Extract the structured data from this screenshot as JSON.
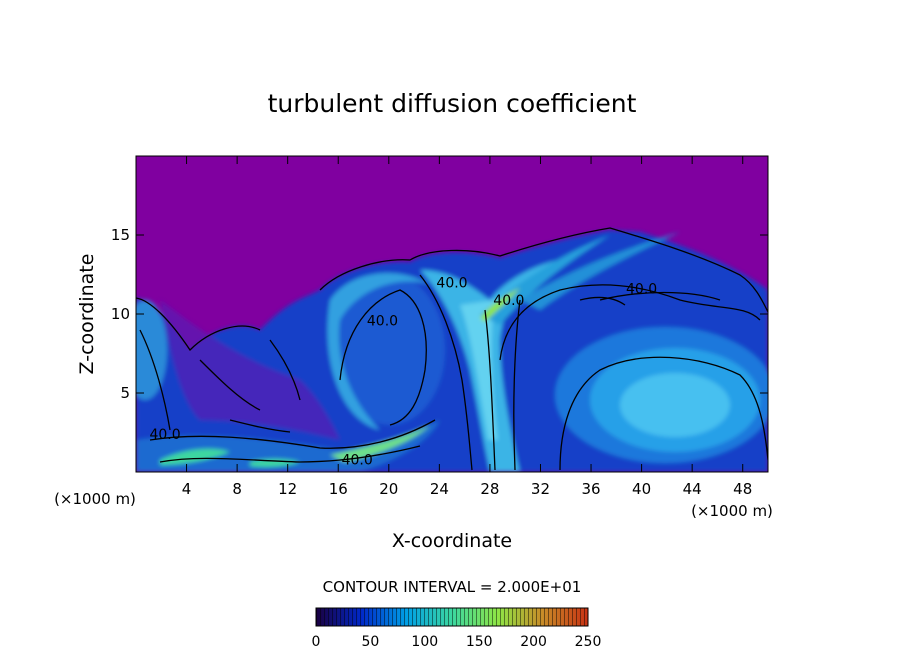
{
  "chart_data": {
    "type": "heatmap",
    "title": "turbulent diffusion coefficient",
    "xlabel": "X-coordinate",
    "ylabel": "Z-coordinate",
    "x_unit_left": "(×1000 m)",
    "x_unit_right": "(×1000 m)",
    "xlim": [
      0,
      50
    ],
    "ylim": [
      0,
      20
    ],
    "xticks": [
      4,
      8,
      12,
      16,
      20,
      24,
      28,
      32,
      36,
      40,
      44,
      48
    ],
    "yticks": [
      5,
      10,
      15
    ],
    "contour_interval_text": "CONTOUR INTERVAL = 2.000E+01",
    "contour_labels": [
      {
        "text": "40.0",
        "x": 40.0,
        "y": 11.6
      },
      {
        "text": "40.0",
        "x": 29.5,
        "y": 10.9
      },
      {
        "text": "40.0",
        "x": 19.5,
        "y": 9.6
      },
      {
        "text": "40.0",
        "x": 25.0,
        "y": 12.0
      },
      {
        "text": "40.0",
        "x": 2.3,
        "y": 2.4
      },
      {
        "text": "40.0",
        "x": 17.5,
        "y": 0.8
      }
    ],
    "colorbar": {
      "min": 0,
      "max": 250,
      "ticks": [
        0,
        50,
        100,
        150,
        200,
        250
      ],
      "colors": [
        "#1a0040",
        "#0028c8",
        "#00a0e6",
        "#3cd7a0",
        "#8ee646",
        "#c88c28",
        "#c83214"
      ]
    },
    "background_color": "#8000a0",
    "grid": false,
    "legend": "none"
  }
}
